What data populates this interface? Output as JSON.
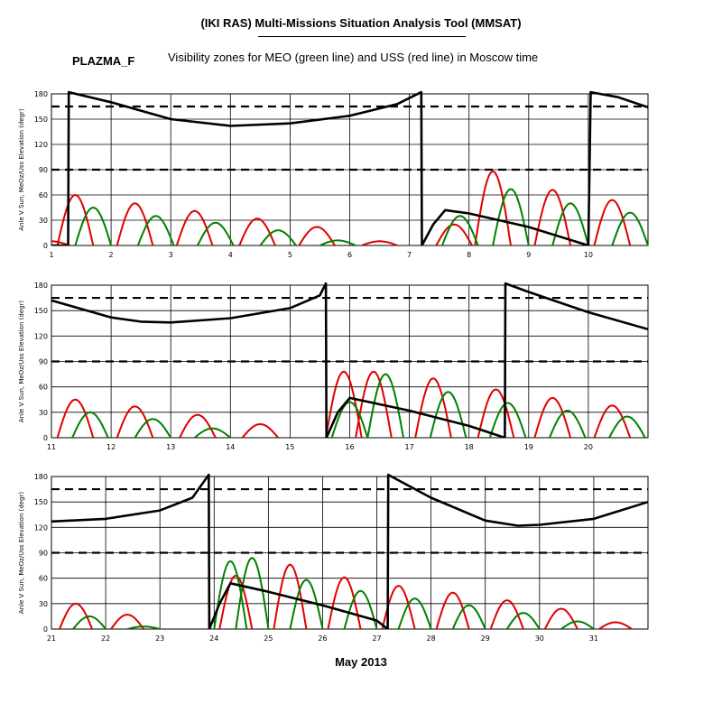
{
  "header": {
    "title": "(IKI RAS) Multi-Missions Situation Analysis Tool (MMSAT)",
    "mission": "PLAZMA_F",
    "subtitle": "Visibility zones for MEO (green line) and USS (red line) in Moscow time"
  },
  "footer": {
    "month_label": "May 2013"
  },
  "colors": {
    "meo": "#008000",
    "uss": "#e00000",
    "sun_angle": "#000000",
    "grid": "#000000"
  },
  "chart_data": [
    {
      "type": "line",
      "ylabel": "Anle V Sun, MeOz/Uss Elevation (degr)",
      "xlim": [
        1,
        11
      ],
      "ylim": [
        0,
        180
      ],
      "x_ticks": [
        1,
        2,
        3,
        4,
        5,
        6,
        7,
        8,
        9,
        10
      ],
      "y_ticks": [
        0,
        30,
        60,
        90,
        120,
        150,
        180
      ],
      "reference_lines": [
        90,
        165
      ],
      "series": [
        {
          "name": "USS",
          "color": "uss",
          "passes": [
            [
              1.0,
              5
            ],
            [
              1.4,
              60
            ],
            [
              2.4,
              50
            ],
            [
              3.4,
              41
            ],
            [
              4.45,
              32
            ],
            [
              5.45,
              22
            ],
            [
              6.5,
              5
            ],
            [
              7.75,
              25
            ],
            [
              8.4,
              88
            ],
            [
              9.4,
              66
            ],
            [
              10.4,
              54
            ]
          ]
        },
        {
          "name": "MEO",
          "color": "meo",
          "passes": [
            [
              1.7,
              45
            ],
            [
              2.75,
              35
            ],
            [
              3.75,
              27
            ],
            [
              4.8,
              18
            ],
            [
              5.8,
              6
            ],
            [
              7.85,
              35
            ],
            [
              8.7,
              67
            ],
            [
              9.7,
              50
            ],
            [
              10.7,
              39
            ]
          ]
        },
        {
          "name": "Sun angle",
          "color": "sun_angle",
          "x": [
            1.0,
            1.28,
            1.29,
            2.0,
            3.0,
            4.0,
            5.0,
            6.0,
            6.8,
            7.2,
            7.21,
            7.4,
            7.6,
            8.0,
            9.0,
            10.0,
            10.04,
            10.5,
            11.0
          ],
          "y": [
            0,
            0,
            182,
            170,
            150,
            142,
            145,
            154,
            168,
            182,
            0,
            25,
            42,
            38,
            22,
            0,
            182,
            176,
            164
          ]
        }
      ]
    },
    {
      "type": "line",
      "ylabel": "Anle V Sun, MeOz/Uss Elevation (degr)",
      "xlim": [
        11,
        21
      ],
      "ylim": [
        0,
        180
      ],
      "x_ticks": [
        11,
        12,
        13,
        14,
        15,
        16,
        17,
        18,
        19,
        20
      ],
      "y_ticks": [
        0,
        30,
        60,
        90,
        120,
        150,
        180
      ],
      "reference_lines": [
        90,
        165
      ],
      "series": [
        {
          "name": "USS",
          "color": "uss",
          "passes": [
            [
              11.4,
              45
            ],
            [
              12.4,
              37
            ],
            [
              13.45,
              27
            ],
            [
              14.5,
              16
            ],
            [
              15.9,
              78
            ],
            [
              16.4,
              78
            ],
            [
              17.4,
              70
            ],
            [
              18.45,
              57
            ],
            [
              19.4,
              47
            ],
            [
              20.4,
              38
            ]
          ]
        },
        {
          "name": "MEO",
          "color": "meo",
          "passes": [
            [
              11.65,
              30
            ],
            [
              12.7,
              22
            ],
            [
              13.7,
              11
            ],
            [
              16.0,
              42
            ],
            [
              16.6,
              75
            ],
            [
              17.65,
              54
            ],
            [
              18.65,
              41
            ],
            [
              19.65,
              32
            ],
            [
              20.65,
              25
            ]
          ]
        },
        {
          "name": "Sun angle",
          "color": "sun_angle",
          "x": [
            11.0,
            12.0,
            12.5,
            13.0,
            14.0,
            15.0,
            15.5,
            15.6,
            15.61,
            15.8,
            16.0,
            17.0,
            18.0,
            18.6,
            18.61,
            19.0,
            20.0,
            21.0
          ],
          "y": [
            162,
            142,
            137,
            136,
            141,
            153,
            168,
            182,
            0,
            30,
            47,
            32,
            14,
            0,
            182,
            172,
            148,
            128
          ]
        }
      ]
    },
    {
      "type": "line",
      "ylabel": "Anle V Sun, MeOz/Uss Elevation (degr)",
      "xlim": [
        21,
        32
      ],
      "ylim": [
        0,
        180
      ],
      "x_ticks": [
        21,
        22,
        23,
        24,
        25,
        26,
        27,
        28,
        29,
        30,
        31
      ],
      "y_ticks": [
        0,
        30,
        60,
        90,
        120,
        150,
        180
      ],
      "reference_lines": [
        90,
        165
      ],
      "series": [
        {
          "name": "USS",
          "color": "uss",
          "passes": [
            [
              21.45,
              30
            ],
            [
              22.4,
              17
            ],
            [
              24.4,
              63
            ],
            [
              25.4,
              76
            ],
            [
              26.4,
              61
            ],
            [
              27.4,
              51
            ],
            [
              28.4,
              43
            ],
            [
              29.4,
              34
            ],
            [
              30.4,
              24
            ],
            [
              31.4,
              8
            ]
          ]
        },
        {
          "name": "MEO",
          "color": "meo",
          "passes": [
            [
              21.7,
              15
            ],
            [
              22.7,
              3
            ],
            [
              24.3,
              80
            ],
            [
              24.7,
              84
            ],
            [
              25.7,
              58
            ],
            [
              26.7,
              45
            ],
            [
              27.7,
              36
            ],
            [
              28.7,
              28
            ],
            [
              29.7,
              19
            ],
            [
              30.7,
              9
            ]
          ]
        },
        {
          "name": "Sun angle",
          "color": "sun_angle",
          "x": [
            21.0,
            22.0,
            23.0,
            23.6,
            23.9,
            23.91,
            24.1,
            24.3,
            25.0,
            26.0,
            27.0,
            27.2,
            27.21,
            28.0,
            29.0,
            29.6,
            30.0,
            31.0,
            32.0
          ],
          "y": [
            127,
            130,
            140,
            155,
            182,
            0,
            30,
            54,
            44,
            28,
            10,
            0,
            182,
            155,
            128,
            122,
            123,
            130,
            150
          ]
        }
      ]
    }
  ]
}
